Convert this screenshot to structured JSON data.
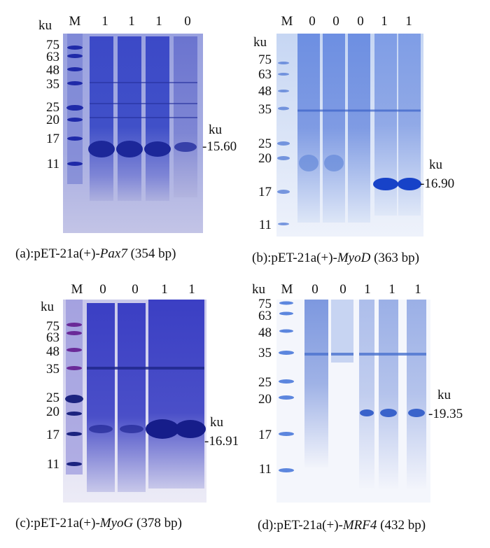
{
  "panels": [
    {
      "id": "a",
      "lane_header": [
        "M",
        "1",
        "1",
        "1",
        "0"
      ],
      "unit": "ku",
      "markers": [
        "75",
        "63",
        "48",
        "35",
        "25",
        "20",
        "17",
        "11"
      ],
      "band_unit": "ku",
      "band_value": "15.60",
      "caption_prefix": "(a):pET-21a(+)-",
      "caption_gene": "Pax7",
      "caption_suffix": " (354 bp)"
    },
    {
      "id": "b",
      "lane_header": [
        "M",
        "0",
        "0",
        "0",
        "1",
        "1"
      ],
      "unit": "ku",
      "markers": [
        "75",
        "63",
        "48",
        "35",
        "25",
        "20",
        "17",
        "11"
      ],
      "band_unit": "ku",
      "band_value": "16.90",
      "caption_prefix": "(b):pET-21a(+)-",
      "caption_gene": "MyoD",
      "caption_suffix": " (363 bp)"
    },
    {
      "id": "c",
      "lane_header": [
        "M",
        "0",
        "0",
        "1",
        "1"
      ],
      "unit": "ku",
      "markers": [
        "75",
        "63",
        "48",
        "35",
        "25",
        "20",
        "17",
        "11"
      ],
      "band_unit": "ku",
      "band_value": "16.91",
      "caption_prefix": "(c):pET-21a(+)-",
      "caption_gene": "MyoG",
      "caption_suffix": " (378 bp)"
    },
    {
      "id": "d",
      "lane_header": [
        "M",
        "0",
        "0",
        "1",
        "1",
        "1"
      ],
      "unit": "ku",
      "markers": [
        "75",
        "63",
        "48",
        "35",
        "25",
        "20",
        "17",
        "11"
      ],
      "band_unit": "ku",
      "band_value": "19.35",
      "caption_prefix": "(d):pET-21a(+)-",
      "caption_gene": "MRF4",
      "caption_suffix": " (432 bp)"
    }
  ]
}
